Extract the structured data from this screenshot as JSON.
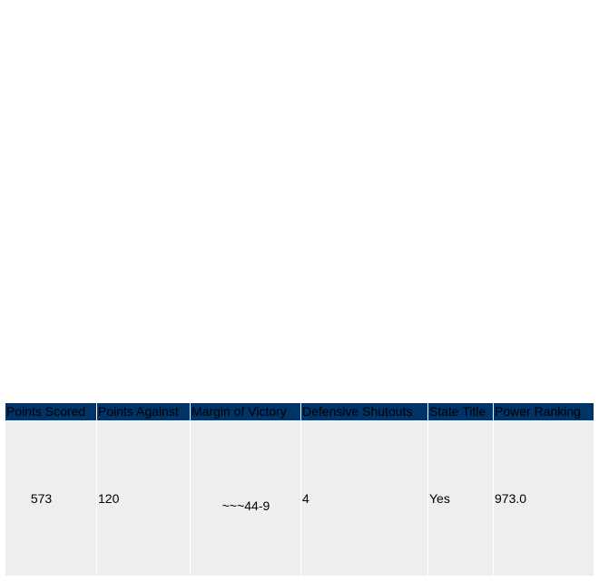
{
  "table": {
    "headers": [
      "Points Scored",
      "Points Against",
      "Margin of Victory",
      "Defensive Shutouts",
      "State Title",
      "Power Ranking"
    ],
    "rows": [
      [
        "573",
        "120",
        "~~~44-9",
        "4",
        "Yes",
        "973.0"
      ]
    ]
  }
}
